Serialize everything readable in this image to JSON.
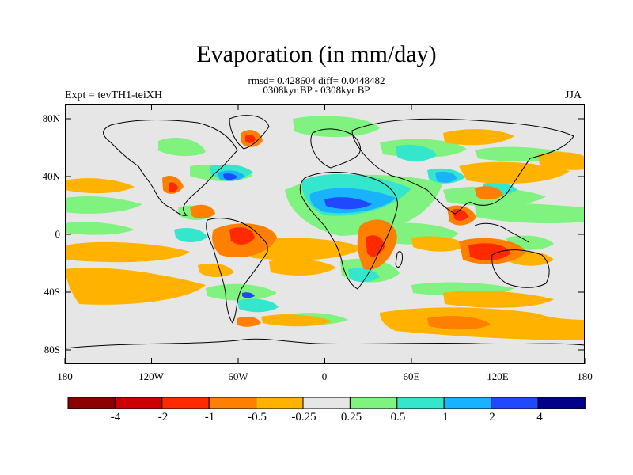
{
  "header": {
    "title": "Evaporation (in mm/day)",
    "stats": "rmsd= 0.428604 diff= 0.0448482",
    "period": "0308kyr BP - 0308kyr BP",
    "experiment": "Expt = tevTH1-teiXH",
    "season": "JJA"
  },
  "axes": {
    "lat_labels": [
      "80N",
      "40N",
      "0",
      "40S",
      "80S"
    ],
    "lon_labels": [
      "180",
      "120W",
      "60W",
      "0",
      "60E",
      "120E",
      "180"
    ]
  },
  "colorbar": {
    "labels": [
      "-4",
      "-2",
      "-1",
      "-0.5",
      "-0.25",
      "0.25",
      "0.5",
      "1",
      "2",
      "4"
    ],
    "colors": [
      "#8b0000",
      "#cc0000",
      "#ff2a00",
      "#ff7f00",
      "#ffb300",
      "#e6e6e6",
      "#7ff27f",
      "#33e6cc",
      "#19b2ff",
      "#1f48ff",
      "#00008b"
    ]
  },
  "map": {
    "background": "#e6e6e6",
    "coastline_color": "#000000"
  }
}
